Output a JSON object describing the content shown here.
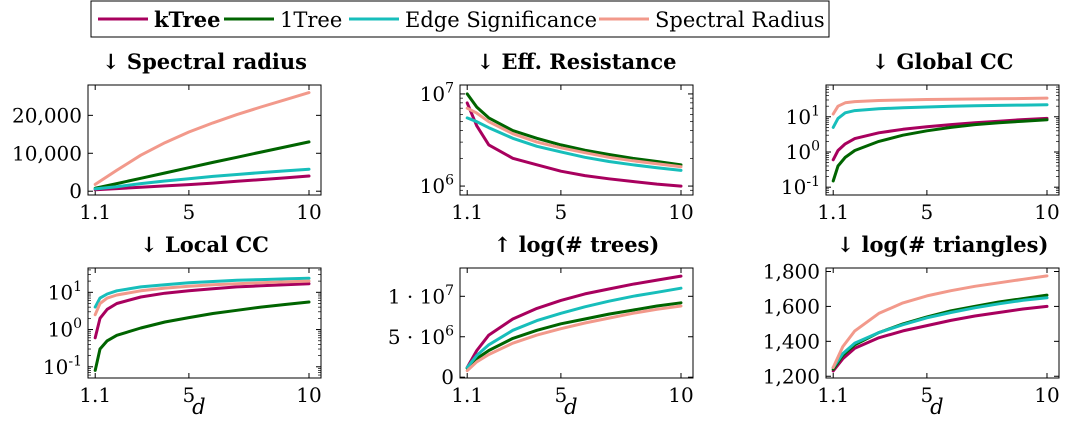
{
  "legend": {
    "items": [
      {
        "label": "kTree",
        "color": "#A8005E",
        "bold": true
      },
      {
        "label": "1Tree",
        "color": "#006400",
        "bold": false
      },
      {
        "label": "Edge Significance",
        "color": "#17BEBB",
        "bold": false
      },
      {
        "label": "Spectral Radius",
        "color": "#F2998B",
        "bold": false
      }
    ]
  },
  "xaxis": {
    "label": "d",
    "ticks": [
      "1.1",
      "5",
      "10"
    ]
  },
  "chart_data": [
    {
      "type": "line",
      "title": "↓ Spectral radius",
      "xlabel": "",
      "yscale": "linear",
      "ylim": [
        -1000,
        28000
      ],
      "yticks": [
        {
          "v": 0,
          "label": "0"
        },
        {
          "v": 10000,
          "label": "10,000"
        },
        {
          "v": 20000,
          "label": "20,000"
        }
      ],
      "x": [
        1.1,
        2,
        3,
        4,
        5,
        6,
        7,
        8,
        9,
        10
      ],
      "series": [
        {
          "name": "kTree",
          "values": [
            400,
            700,
            1050,
            1400,
            1750,
            2150,
            2600,
            3050,
            3500,
            4000
          ]
        },
        {
          "name": "1Tree",
          "values": [
            800,
            2000,
            3400,
            4800,
            6200,
            7600,
            8950,
            10300,
            11650,
            13000
          ]
        },
        {
          "name": "Edge Significance",
          "values": [
            600,
            1200,
            2000,
            2700,
            3300,
            3900,
            4400,
            4900,
            5350,
            5800
          ]
        },
        {
          "name": "Spectral Radius",
          "values": [
            1800,
            5500,
            9500,
            12800,
            15600,
            18000,
            20200,
            22200,
            24100,
            26000
          ]
        }
      ]
    },
    {
      "type": "line",
      "title": "↓ Eff. Resistance",
      "xlabel": "",
      "yscale": "log",
      "ylim": [
        800000,
        12500000
      ],
      "yticks": [
        {
          "v": 1000000,
          "label": "10^6"
        },
        {
          "v": 10000000,
          "label": "10^7"
        }
      ],
      "x": [
        1.1,
        1.5,
        2,
        3,
        4,
        5,
        6,
        7,
        8,
        9,
        10
      ],
      "series": [
        {
          "name": "kTree",
          "values": [
            8000000,
            4500000,
            2800000,
            2000000,
            1700000,
            1450000,
            1300000,
            1200000,
            1120000,
            1050000,
            1000000
          ]
        },
        {
          "name": "1Tree",
          "values": [
            10000000,
            7200000,
            5500000,
            4000000,
            3300000,
            2800000,
            2450000,
            2200000,
            2000000,
            1850000,
            1700000
          ]
        },
        {
          "name": "Edge Significance",
          "values": [
            5500000,
            5000000,
            4300000,
            3300000,
            2700000,
            2350000,
            2050000,
            1850000,
            1700000,
            1580000,
            1480000
          ]
        },
        {
          "name": "Spectral Radius",
          "values": [
            7000000,
            6200000,
            5000000,
            3700000,
            3000000,
            2600000,
            2300000,
            2050000,
            1880000,
            1750000,
            1620000
          ]
        }
      ]
    },
    {
      "type": "line",
      "title": "↓ Global CC",
      "xlabel": "",
      "yscale": "log",
      "ylim": [
        0.06,
        80
      ],
      "yticks": [
        {
          "v": 0.1,
          "label": "10^-1"
        },
        {
          "v": 1,
          "label": "10^0"
        },
        {
          "v": 10,
          "label": "10^1"
        }
      ],
      "x": [
        1.1,
        1.3,
        1.6,
        2,
        3,
        4,
        5,
        6,
        7,
        8,
        9,
        10
      ],
      "series": [
        {
          "name": "kTree",
          "values": [
            0.6,
            1.1,
            1.7,
            2.4,
            3.5,
            4.4,
            5.2,
            6.0,
            6.8,
            7.5,
            8.3,
            9.0
          ]
        },
        {
          "name": "1Tree",
          "values": [
            0.15,
            0.4,
            0.7,
            1.1,
            2.0,
            3.0,
            4.0,
            5.0,
            6.0,
            6.8,
            7.5,
            8.2
          ]
        },
        {
          "name": "Edge Significance",
          "values": [
            5,
            9,
            13,
            15,
            17,
            18,
            19,
            20,
            20.5,
            21,
            21.5,
            22
          ]
        },
        {
          "name": "Spectral Radius",
          "values": [
            12,
            20,
            25,
            27,
            29,
            30,
            31,
            31.5,
            32,
            32.5,
            33,
            34
          ]
        }
      ]
    },
    {
      "type": "line",
      "title": "↓ Local CC",
      "xlabel": "d",
      "yscale": "log",
      "ylim": [
        0.05,
        45
      ],
      "yticks": [
        {
          "v": 0.1,
          "label": "10^-1"
        },
        {
          "v": 1,
          "label": "10^0"
        },
        {
          "v": 10,
          "label": "10^1"
        }
      ],
      "x": [
        1.1,
        1.3,
        1.6,
        2,
        3,
        4,
        5,
        6,
        7,
        8,
        9,
        10
      ],
      "series": [
        {
          "name": "kTree",
          "values": [
            0.6,
            2.0,
            3.5,
            5.0,
            7.5,
            9.5,
            11,
            12.5,
            14,
            15,
            16,
            17
          ]
        },
        {
          "name": "1Tree",
          "values": [
            0.08,
            0.3,
            0.5,
            0.7,
            1.1,
            1.6,
            2.1,
            2.7,
            3.3,
            4.0,
            4.7,
            5.5
          ]
        },
        {
          "name": "Edge Significance",
          "values": [
            4,
            7,
            9,
            11,
            14,
            16,
            18,
            19.5,
            21,
            22,
            23,
            24
          ]
        },
        {
          "name": "Spectral Radius",
          "values": [
            2.5,
            5,
            7,
            8.5,
            11,
            13,
            14.5,
            16,
            17,
            18,
            19,
            20
          ]
        }
      ]
    },
    {
      "type": "line",
      "title": "↑ log(# trees)",
      "xlabel": "d",
      "yscale": "linear",
      "ylim": [
        -100000,
        13500000
      ],
      "yticks": [
        {
          "v": 0,
          "label": "0"
        },
        {
          "v": 5000000,
          "label": "5 · 10^6"
        },
        {
          "v": 10000000,
          "label": "1 · 10^7"
        }
      ],
      "x": [
        1.1,
        1.5,
        2,
        3,
        4,
        5,
        6,
        7,
        8,
        9,
        10
      ],
      "series": [
        {
          "name": "kTree",
          "values": [
            1200000,
            3300000,
            5200000,
            7200000,
            8500000,
            9500000,
            10300000,
            10900000,
            11500000,
            12000000,
            12500000
          ]
        },
        {
          "name": "1Tree",
          "values": [
            1100000,
            2300000,
            3300000,
            4800000,
            5800000,
            6600000,
            7200000,
            7800000,
            8300000,
            8800000,
            9200000
          ]
        },
        {
          "name": "Edge Significance",
          "values": [
            1200000,
            2700000,
            4000000,
            5800000,
            7000000,
            7900000,
            8700000,
            9400000,
            10000000,
            10500000,
            11000000
          ]
        },
        {
          "name": "Spectral Radius",
          "values": [
            800000,
            1900000,
            2800000,
            4200000,
            5200000,
            6000000,
            6700000,
            7300000,
            7900000,
            8400000,
            8800000
          ]
        }
      ]
    },
    {
      "type": "line",
      "title": "↓ log(# triangles)",
      "xlabel": "d",
      "yscale": "linear",
      "ylim": [
        1190,
        1820
      ],
      "yticks": [
        {
          "v": 1200,
          "label": "1,200"
        },
        {
          "v": 1400,
          "label": "1,400"
        },
        {
          "v": 1600,
          "label": "1,600"
        },
        {
          "v": 1800,
          "label": "1,800"
        }
      ],
      "x": [
        1.1,
        1.5,
        2,
        3,
        4,
        5,
        6,
        7,
        8,
        9,
        10
      ],
      "series": [
        {
          "name": "kTree",
          "values": [
            1230,
            1300,
            1360,
            1420,
            1460,
            1490,
            1520,
            1545,
            1565,
            1585,
            1600
          ]
        },
        {
          "name": "1Tree",
          "values": [
            1240,
            1320,
            1380,
            1450,
            1500,
            1540,
            1575,
            1600,
            1625,
            1645,
            1665
          ]
        },
        {
          "name": "Edge Significance",
          "values": [
            1250,
            1330,
            1390,
            1450,
            1495,
            1535,
            1565,
            1592,
            1615,
            1635,
            1650
          ]
        },
        {
          "name": "Spectral Radius",
          "values": [
            1250,
            1370,
            1460,
            1560,
            1620,
            1660,
            1690,
            1715,
            1735,
            1755,
            1775
          ]
        }
      ]
    }
  ]
}
